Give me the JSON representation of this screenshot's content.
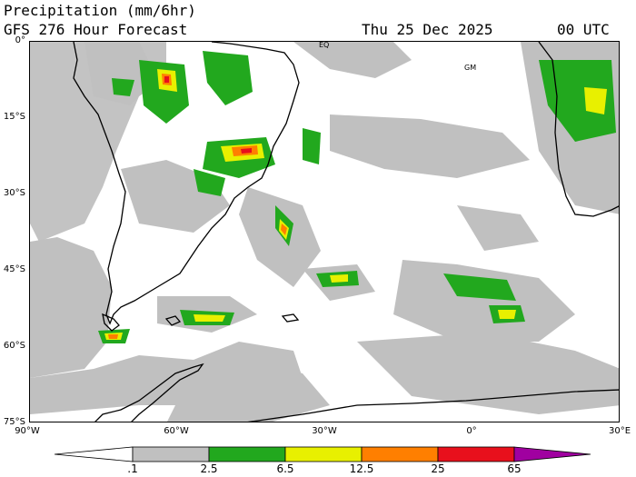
{
  "header": {
    "title_line1": "Precipitation (mm/6hr)",
    "title_line2": "GFS 276 Hour Forecast",
    "valid_date": "Thu 25 Dec 2025",
    "valid_time": "00 UTC"
  },
  "map": {
    "lat_labels": [
      "0°",
      "15°S",
      "30°S",
      "45°S",
      "60°S",
      "75°S"
    ],
    "lon_labels": [
      "90°W",
      "60°W",
      "30°W",
      "0°",
      "30°E"
    ],
    "equator_label": "EQ",
    "greenwich_label": "GM",
    "lon_range": [
      -90,
      30
    ],
    "lat_range": [
      0,
      -75
    ]
  },
  "legend": {
    "tick_labels": [
      ".1",
      "2.5",
      "6.5",
      "12.5",
      "25",
      "65"
    ],
    "colors": [
      "#ffffff",
      "#c0c0c0",
      "#22a81e",
      "#e8f000",
      "#ff7f00",
      "#e8101c",
      "#a000a0"
    ]
  },
  "colors": {
    "light_precip": "#c0c0c0",
    "moderate_precip": "#22a81e",
    "heavy_precip": "#e8f000",
    "very_heavy_precip": "#ff7f00",
    "extreme_precip": "#e8101c",
    "coastline": "#000000"
  }
}
